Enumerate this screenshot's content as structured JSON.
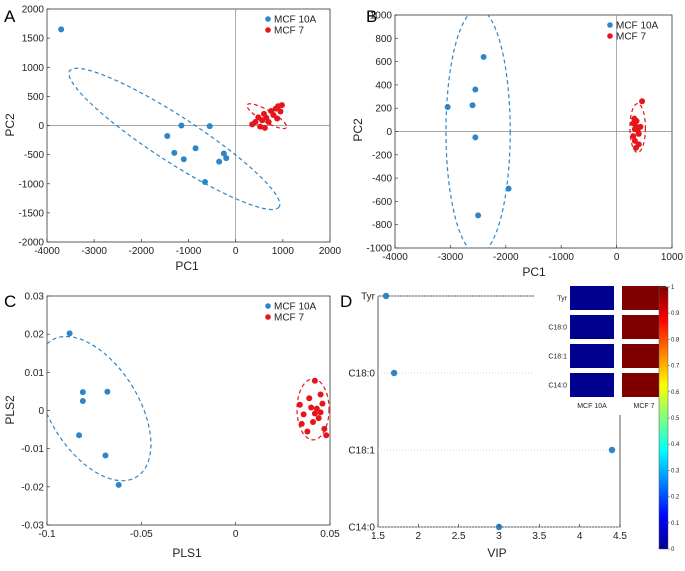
{
  "colors": {
    "blue": "#2e86c8",
    "red": "#e8141c",
    "axis": "#333333",
    "zero": "#888888",
    "heat_low": "#00008f",
    "heat_high": "#800000"
  },
  "chart_data": [
    {
      "id": "A",
      "type": "scatter",
      "panel_label": "A",
      "xlabel": "PC1",
      "ylabel": "PC2",
      "xlim": [
        -4000,
        2000
      ],
      "ylim": [
        -2000,
        2000
      ],
      "xticks": [
        -4000,
        -3000,
        -2000,
        -1000,
        0,
        1000,
        2000
      ],
      "yticks": [
        -2000,
        -1500,
        -1000,
        -500,
        0,
        500,
        1000,
        1500,
        2000
      ],
      "zero_lines": true,
      "legend": "top-right",
      "series": [
        {
          "name": "MCF 10A",
          "color": "#2e86c8",
          "points": [
            [
              -3700,
              1650
            ],
            [
              -1150,
              0
            ],
            [
              -1450,
              -180
            ],
            [
              -1300,
              -470
            ],
            [
              -1100,
              -580
            ],
            [
              -850,
              -390
            ],
            [
              -650,
              -970
            ],
            [
              -550,
              -10
            ],
            [
              -350,
              -620
            ],
            [
              -250,
              -480
            ],
            [
              -200,
              -560
            ]
          ],
          "ellipse": {
            "cx": -1300,
            "cy": -230,
            "rx": 2370,
            "ry": 430,
            "angle": 33
          }
        },
        {
          "name": "MCF 7",
          "color": "#e8141c",
          "points": [
            [
              350,
              20
            ],
            [
              420,
              60
            ],
            [
              480,
              140
            ],
            [
              520,
              -20
            ],
            [
              560,
              90
            ],
            [
              600,
              200
            ],
            [
              650,
              130
            ],
            [
              700,
              60
            ],
            [
              750,
              250
            ],
            [
              800,
              180
            ],
            [
              850,
              290
            ],
            [
              900,
              330
            ],
            [
              950,
              240
            ],
            [
              980,
              350
            ],
            [
              620,
              -40
            ],
            [
              880,
              120
            ]
          ],
          "ellipse": {
            "cx": 660,
            "cy": 160,
            "rx": 430,
            "ry": 110,
            "angle": 30
          }
        }
      ]
    },
    {
      "id": "B",
      "type": "scatter",
      "panel_label": "B",
      "xlabel": "PC1",
      "ylabel": "PC2",
      "xlim": [
        -4000,
        1000
      ],
      "ylim": [
        -1000,
        1000
      ],
      "xticks": [
        -4000,
        -3000,
        -2000,
        -1000,
        0,
        1000
      ],
      "yticks": [
        -1000,
        -800,
        -600,
        -400,
        -200,
        0,
        200,
        400,
        600,
        800,
        1000
      ],
      "zero_lines": true,
      "legend": "top-right",
      "series": [
        {
          "name": "MCF 10A",
          "color": "#2e86c8",
          "points": [
            [
              -3050,
              210
            ],
            [
              -2550,
              360
            ],
            [
              -2600,
              225
            ],
            [
              -2400,
              640
            ],
            [
              -2550,
              -50
            ],
            [
              -2500,
              -720
            ],
            [
              -1950,
              -490
            ]
          ],
          "ellipse": {
            "cx": -2500,
            "cy": 0,
            "rx": 580,
            "ry": 1050,
            "angle": 0
          }
        },
        {
          "name": "MCF 7",
          "color": "#e8141c",
          "points": [
            [
              300,
              70
            ],
            [
              330,
              20
            ],
            [
              360,
              40
            ],
            [
              300,
              -40
            ],
            [
              330,
              -80
            ],
            [
              380,
              10
            ],
            [
              400,
              -20
            ],
            [
              430,
              40
            ],
            [
              460,
              260
            ],
            [
              400,
              -110
            ],
            [
              350,
              -140
            ],
            [
              320,
              110
            ],
            [
              360,
              90
            ]
          ],
          "ellipse": {
            "cx": 380,
            "cy": 30,
            "rx": 140,
            "ry": 210,
            "angle": 0
          }
        }
      ]
    },
    {
      "id": "C",
      "type": "scatter",
      "panel_label": "C",
      "xlabel": "PLS1",
      "ylabel": "PLS2",
      "xlim": [
        -0.1,
        0.05
      ],
      "ylim": [
        -0.03,
        0.03
      ],
      "xticks": [
        -0.1,
        -0.05,
        0,
        0.05
      ],
      "xtick_labels": [
        "-0.1",
        "-0.05",
        "0",
        "0.05"
      ],
      "yticks": [
        -0.03,
        -0.02,
        -0.01,
        0,
        0.01,
        0.02,
        0.03
      ],
      "ytick_labels": [
        "-0.03",
        "-0.02",
        "-0.01",
        "0",
        "0.01",
        "0.02",
        "0.03"
      ],
      "zero_lines": false,
      "legend": "top-right",
      "series": [
        {
          "name": "MCF 10A",
          "color": "#2e86c8",
          "points": [
            [
              -0.088,
              0.0202
            ],
            [
              -0.081,
              0.0048
            ],
            [
              -0.081,
              0.0025
            ],
            [
              -0.083,
              -0.0065
            ],
            [
              -0.068,
              0.0049
            ],
            [
              -0.069,
              -0.0118
            ],
            [
              -0.062,
              -0.0195
            ]
          ],
          "ellipse": {
            "cx": -0.075,
            "cy": 0.0005,
            "rx": 0.0155,
            "ry": 0.0282,
            "angle": -32
          }
        },
        {
          "name": "MCF 7",
          "color": "#e8141c",
          "points": [
            [
              0.034,
              0.0015
            ],
            [
              0.036,
              -0.001
            ],
            [
              0.035,
              -0.0035
            ],
            [
              0.038,
              -0.0055
            ],
            [
              0.039,
              0.0032
            ],
            [
              0.04,
              0.0008
            ],
            [
              0.041,
              -0.003
            ],
            [
              0.042,
              0.0078
            ],
            [
              0.043,
              0.0005
            ],
            [
              0.044,
              -0.002
            ],
            [
              0.045,
              0.0042
            ],
            [
              0.046,
              0.0018
            ],
            [
              0.047,
              -0.0048
            ],
            [
              0.048,
              -0.0065
            ],
            [
              0.042,
              -0.0008
            ],
            [
              0.045,
              -0.0005
            ]
          ],
          "ellipse": {
            "cx": 0.041,
            "cy": 0.0003,
            "rx": 0.0085,
            "ry": 0.008,
            "angle": 0
          }
        }
      ]
    },
    {
      "id": "D",
      "type": "scatter",
      "panel_label": "D",
      "xlabel": "VIP",
      "ylabel": "",
      "xlim": [
        1.5,
        4.5
      ],
      "xticks": [
        1.5,
        2,
        2.5,
        3,
        3.5,
        4,
        4.5
      ],
      "xtick_labels": [
        "1.5",
        "2",
        "2.5",
        "3",
        "3.5",
        "4",
        "4.5"
      ],
      "categories": [
        "Tyr",
        "C18:0",
        "C18:1",
        "C14:0"
      ],
      "values": [
        1.6,
        1.7,
        4.4,
        3.0
      ],
      "color": "#2e86c8",
      "grid_rows": true
    },
    {
      "id": "D-inset",
      "type": "heatmap",
      "rows": [
        "Tyr",
        "C18:0",
        "C18:1",
        "C14:0"
      ],
      "columns": [
        "MCF 10A",
        "MCF 7"
      ],
      "values": [
        [
          0,
          1
        ],
        [
          0,
          1
        ],
        [
          0,
          1
        ],
        [
          0,
          1
        ]
      ],
      "colorbar": {
        "min": 0,
        "max": 1,
        "ticks": [
          0,
          0.1,
          0.2,
          0.3,
          0.4,
          0.5,
          0.6,
          0.7,
          0.8,
          0.9,
          1
        ],
        "tick_labels": [
          "0",
          "0.1",
          "0.2",
          "0.3",
          "0.4",
          "0.5",
          "0.6",
          "0.7",
          "0.8",
          "0.9",
          "1"
        ]
      }
    }
  ]
}
